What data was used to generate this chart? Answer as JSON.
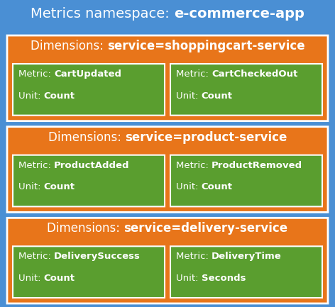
{
  "title_normal": "Metrics namespace: ",
  "title_bold": "e-commerce-app",
  "bg_color": "#4a8fd4",
  "orange_color": "#e8751a",
  "green_color": "#5a9e2f",
  "white": "#ffffff",
  "title_fontsize": 14,
  "header_fontsize": 12,
  "metric_fontsize": 9.5,
  "sections": [
    {
      "dim_normal": "Dimensions: ",
      "dim_bold": "service=shoppingcart-service",
      "metrics": [
        {
          "metric_bold": "CartUpdated",
          "unit_bold": "Count"
        },
        {
          "metric_bold": "CartCheckedOut",
          "unit_bold": "Count"
        }
      ]
    },
    {
      "dim_normal": "Dimensions: ",
      "dim_bold": "service=product-service",
      "metrics": [
        {
          "metric_bold": "ProductAdded",
          "unit_bold": "Count"
        },
        {
          "metric_bold": "ProductRemoved",
          "unit_bold": "Count"
        }
      ]
    },
    {
      "dim_normal": "Dimensions: ",
      "dim_bold": "service=delivery-service",
      "metrics": [
        {
          "metric_bold": "DeliverySuccess",
          "unit_bold": "Count"
        },
        {
          "metric_bold": "DeliveryTime",
          "unit_bold": "Seconds"
        }
      ]
    }
  ]
}
